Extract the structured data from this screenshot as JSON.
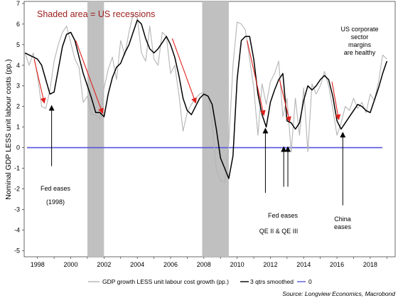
{
  "chart_data": {
    "type": "line",
    "title": "",
    "ylabel": "Nominal GDP LESS unit labour costs (pp.)",
    "xlabel": "",
    "xlim": [
      1997.2,
      2019.5
    ],
    "ylim": [
      -5.3,
      7.1
    ],
    "x_ticks": [
      1998,
      2000,
      2002,
      2004,
      2006,
      2008,
      2010,
      2012,
      2014,
      2016,
      2018
    ],
    "y_ticks": [
      -5,
      -4,
      -3,
      -2,
      -1,
      0,
      1,
      2,
      3,
      4,
      5,
      6,
      7
    ],
    "shade_label": "Shaded area = US recessions",
    "recessions": [
      [
        2001.0,
        2002.0
      ],
      [
        2007.9,
        2009.5
      ]
    ],
    "series": [
      {
        "name": "GDP growth LESS unit labour cost growth (pp.)",
        "color": "#b4b4b4",
        "x": [
          1997.25,
          1997.5,
          1997.75,
          1998.0,
          1998.25,
          1998.5,
          1998.75,
          1999.0,
          1999.25,
          1999.5,
          1999.75,
          2000.0,
          2000.25,
          2000.5,
          2000.75,
          2001.0,
          2001.25,
          2001.5,
          2001.75,
          2002.0,
          2002.25,
          2002.5,
          2002.75,
          2003.0,
          2003.25,
          2003.5,
          2003.75,
          2004.0,
          2004.25,
          2004.5,
          2004.75,
          2005.0,
          2005.25,
          2005.5,
          2005.75,
          2006.0,
          2006.25,
          2006.5,
          2006.75,
          2007.0,
          2007.25,
          2007.5,
          2007.75,
          2008.0,
          2008.25,
          2008.5,
          2008.75,
          2009.0,
          2009.25,
          2009.5,
          2009.75,
          2010.0,
          2010.25,
          2010.5,
          2010.75,
          2011.0,
          2011.25,
          2011.5,
          2011.75,
          2012.0,
          2012.25,
          2012.5,
          2012.75,
          2013.0,
          2013.25,
          2013.5,
          2013.75,
          2014.0,
          2014.25,
          2014.5,
          2014.75,
          2015.0,
          2015.25,
          2015.5,
          2015.75,
          2016.0,
          2016.25,
          2016.5,
          2016.75,
          2017.0,
          2017.25,
          2017.5,
          2017.75,
          2018.0,
          2018.25,
          2018.5,
          2018.75,
          2019.0
        ],
        "values": [
          4.6,
          4.0,
          4.6,
          3.5,
          2.0,
          1.9,
          2.8,
          4.2,
          5.0,
          5.6,
          5.9,
          5.1,
          4.3,
          3.9,
          2.2,
          2.5,
          1.6,
          1.6,
          1.4,
          2.9,
          3.8,
          4.4,
          3.3,
          5.2,
          4.5,
          5.6,
          6.5,
          6.3,
          4.6,
          4.2,
          5.9,
          4.3,
          4.0,
          5.6,
          5.4,
          3.6,
          4.0,
          2.6,
          0.8,
          1.7,
          2.1,
          2.4,
          2.6,
          2.7,
          2.5,
          1.2,
          -1.1,
          -1.6,
          -1.7,
          0.2,
          4.0,
          6.1,
          6.0,
          5.7,
          4.3,
          2.9,
          0.6,
          3.1,
          2.1,
          3.2,
          3.6,
          4.2,
          1.5,
          2.4,
          -0.2,
          2.4,
          0.6,
          2.9,
          -0.2,
          3.1,
          2.6,
          3.0,
          3.7,
          3.0,
          1.9,
          0.6,
          1.2,
          2.0,
          1.8,
          2.4,
          1.9,
          2.2,
          1.7,
          2.6,
          2.3,
          3.2,
          4.5,
          4.3
        ]
      },
      {
        "name": "3 qtrs smoothed",
        "color": "#000000",
        "x": [
          1997.25,
          1997.5,
          1997.75,
          1998.0,
          1998.25,
          1998.5,
          1998.75,
          1999.0,
          1999.25,
          1999.5,
          1999.75,
          2000.0,
          2000.25,
          2000.5,
          2000.75,
          2001.0,
          2001.25,
          2001.5,
          2001.75,
          2002.0,
          2002.25,
          2002.5,
          2002.75,
          2003.0,
          2003.25,
          2003.5,
          2003.75,
          2004.0,
          2004.25,
          2004.5,
          2004.75,
          2005.0,
          2005.25,
          2005.5,
          2005.75,
          2006.0,
          2006.25,
          2006.5,
          2006.75,
          2007.0,
          2007.25,
          2007.5,
          2007.75,
          2008.0,
          2008.25,
          2008.5,
          2008.75,
          2009.0,
          2009.25,
          2009.5,
          2009.75,
          2010.0,
          2010.25,
          2010.5,
          2010.75,
          2011.0,
          2011.25,
          2011.5,
          2011.75,
          2012.0,
          2012.25,
          2012.5,
          2012.75,
          2013.0,
          2013.25,
          2013.5,
          2013.75,
          2014.0,
          2014.25,
          2014.5,
          2014.75,
          2015.0,
          2015.25,
          2015.5,
          2015.75,
          2016.0,
          2016.25,
          2016.5,
          2016.75,
          2017.0,
          2017.25,
          2017.5,
          2017.75,
          2018.0,
          2018.25,
          2018.5,
          2018.75,
          2019.0
        ],
        "values": [
          4.6,
          4.5,
          4.4,
          4.3,
          4.0,
          3.3,
          2.6,
          2.7,
          3.8,
          4.9,
          5.5,
          5.6,
          5.2,
          4.4,
          3.6,
          3.0,
          2.4,
          1.7,
          1.7,
          1.5,
          2.6,
          3.4,
          3.9,
          4.1,
          4.6,
          5.0,
          5.6,
          6.2,
          6.0,
          5.3,
          4.8,
          4.6,
          4.8,
          5.1,
          5.4,
          5.0,
          4.4,
          3.5,
          2.4,
          1.8,
          1.6,
          2.0,
          2.4,
          2.6,
          2.5,
          2.1,
          0.9,
          -0.5,
          -1.0,
          -1.5,
          -0.4,
          3.3,
          5.2,
          5.4,
          5.4,
          4.3,
          2.6,
          1.6,
          1.0,
          2.2,
          2.8,
          3.3,
          3.6,
          1.3,
          1.2,
          0.9,
          1.2,
          2.3,
          3.0,
          2.8,
          3.0,
          3.3,
          3.5,
          3.3,
          2.5,
          1.3,
          0.9,
          1.2,
          1.5,
          1.8,
          2.1,
          2.0,
          1.8,
          1.7,
          2.3,
          2.9,
          3.6,
          4.2
        ]
      },
      {
        "name": "0",
        "color": "#5555e0",
        "x": [
          1997.2,
          2019.5
        ],
        "values": [
          0,
          0
        ]
      }
    ],
    "annotations": [
      {
        "id": "fed1",
        "lines": [
          "Fed eases",
          "(1998)"
        ]
      },
      {
        "id": "fed2",
        "lines": [
          "Fed eases",
          "QE II & QE III"
        ]
      },
      {
        "id": "china",
        "lines": [
          "China",
          "eases"
        ]
      },
      {
        "id": "margins",
        "lines": [
          "US corporate",
          "sector",
          "margins",
          "are healthy"
        ]
      }
    ],
    "legend_placement": "bottom",
    "grid": false
  },
  "source": "Source: Longview Economics, Macrobond"
}
